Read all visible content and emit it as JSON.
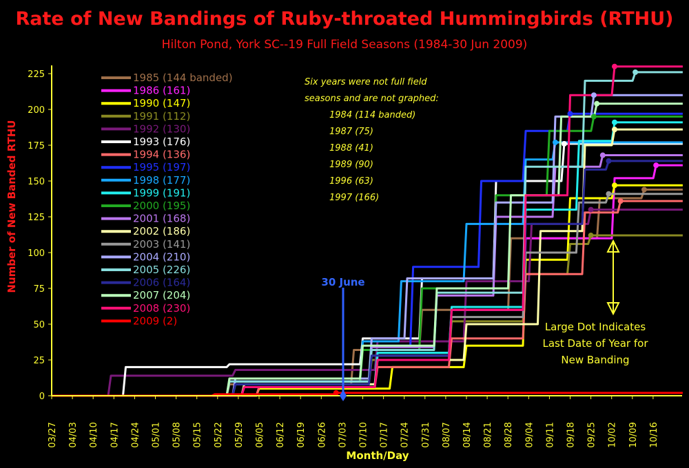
{
  "title": "Rate of New Bandings of Ruby-throated Hummingbirds (RTHU)",
  "subtitle": "Hilton Pond, York SC--19 Full Field Seasons (1984-30 Jun 2009)",
  "chart_data": {
    "type": "line",
    "xlabel": "Month/Day",
    "ylabel": "Number of New Banded RTHU",
    "x_ticks": [
      "03/27",
      "04/03",
      "04/10",
      "04/17",
      "04/24",
      "05/01",
      "05/08",
      "05/15",
      "05/22",
      "05/29",
      "06/05",
      "06/12",
      "06/19",
      "06/26",
      "07/03",
      "07/10",
      "07/17",
      "07/24",
      "07/31",
      "08/07",
      "08/14",
      "08/21",
      "08/28",
      "09/04",
      "09/11",
      "09/18",
      "09/25",
      "10/02",
      "10/09",
      "10/16"
    ],
    "ylim": [
      0,
      225
    ],
    "y_ticks": [
      0,
      25,
      50,
      75,
      100,
      125,
      150,
      175,
      200,
      225
    ],
    "series": [
      {
        "year": "1985",
        "count": "(144 banded)",
        "color": "#a0704a",
        "final": 144,
        "days": [
          0,
          60,
          102,
          125,
          155,
          185,
          200
        ],
        "vals": [
          0,
          8,
          32,
          60,
          110,
          138,
          144
        ]
      },
      {
        "year": "1986",
        "count": "(161)",
        "color": "#ff22ff",
        "final": 161,
        "days": [
          0,
          65,
          110,
          135,
          160,
          190,
          204
        ],
        "vals": [
          0,
          6,
          28,
          60,
          110,
          152,
          161
        ]
      },
      {
        "year": "1990",
        "count": "(147)",
        "color": "#ffff00",
        "final": 147,
        "days": [
          0,
          70,
          115,
          140,
          160,
          175,
          190
        ],
        "vals": [
          0,
          5,
          20,
          35,
          95,
          138,
          147
        ]
      },
      {
        "year": "1991",
        "count": "(112)",
        "color": "#8a8a22",
        "final": 112,
        "days": [
          0,
          62,
          108,
          135,
          160,
          175,
          182
        ],
        "vals": [
          0,
          8,
          25,
          52,
          85,
          106,
          112
        ]
      },
      {
        "year": "1992",
        "count": "(130)",
        "color": "#7a1a7a",
        "final": 130,
        "days": [
          0,
          20,
          62,
          110,
          140,
          162,
          182
        ],
        "vals": [
          0,
          14,
          18,
          38,
          80,
          120,
          130
        ]
      },
      {
        "year": "1993",
        "count": "(176)",
        "color": "#ffffff",
        "final": 176,
        "days": [
          0,
          25,
          60,
          105,
          125,
          150,
          173
        ],
        "vals": [
          0,
          20,
          22,
          40,
          82,
          150,
          176
        ]
      },
      {
        "year": "1994",
        "count": "(136)",
        "color": "#ff6a6a",
        "final": 136,
        "days": [
          0,
          70,
          110,
          135,
          160,
          180,
          192
        ],
        "vals": [
          0,
          6,
          20,
          40,
          85,
          128,
          136
        ]
      },
      {
        "year": "1995",
        "count": "(197)",
        "color": "#2030ff",
        "final": 197,
        "days": [
          0,
          62,
          108,
          122,
          145,
          160,
          175
        ],
        "vals": [
          0,
          10,
          35,
          90,
          150,
          185,
          197
        ]
      },
      {
        "year": "1998",
        "count": "(177)",
        "color": "#18a8ff",
        "final": 177,
        "days": [
          0,
          60,
          105,
          118,
          140,
          160,
          170
        ],
        "vals": [
          0,
          10,
          38,
          80,
          120,
          165,
          177
        ]
      },
      {
        "year": "1999",
        "count": "(191)",
        "color": "#22eeee",
        "final": 191,
        "days": [
          0,
          62,
          110,
          135,
          160,
          178,
          190
        ],
        "vals": [
          0,
          8,
          30,
          62,
          130,
          178,
          191
        ]
      },
      {
        "year": "2000",
        "count": "(195)",
        "color": "#22aa22",
        "final": 195,
        "days": [
          0,
          60,
          105,
          125,
          150,
          168,
          183
        ],
        "vals": [
          0,
          10,
          32,
          75,
          140,
          185,
          195
        ]
      },
      {
        "year": "2001",
        "count": "(168)",
        "color": "#bb77ee",
        "final": 168,
        "days": [
          0,
          60,
          108,
          130,
          150,
          170,
          186
        ],
        "vals": [
          0,
          10,
          34,
          70,
          125,
          160,
          168
        ]
      },
      {
        "year": "2002",
        "count": "(186)",
        "color": "#ffffaa",
        "final": 186,
        "days": [
          0,
          65,
          110,
          140,
          165,
          180,
          190
        ],
        "vals": [
          0,
          8,
          25,
          50,
          115,
          175,
          186
        ]
      },
      {
        "year": "2003",
        "count": "(141)",
        "color": "#999999",
        "final": 141,
        "days": [
          0,
          60,
          108,
          135,
          160,
          178,
          188
        ],
        "vals": [
          0,
          12,
          28,
          55,
          100,
          135,
          141
        ]
      },
      {
        "year": "2004",
        "count": "(210)",
        "color": "#aaaaff",
        "final": 210,
        "days": [
          0,
          62,
          108,
          120,
          150,
          170,
          183
        ],
        "vals": [
          0,
          12,
          40,
          82,
          135,
          195,
          210
        ]
      },
      {
        "year": "2005",
        "count": "(226)",
        "color": "#88dddd",
        "final": 226,
        "days": [
          0,
          60,
          108,
          130,
          160,
          180,
          197
        ],
        "vals": [
          0,
          10,
          32,
          72,
          160,
          220,
          226
        ]
      },
      {
        "year": "2006",
        "count": "(164)",
        "color": "#2a2a99",
        "final": 164,
        "days": [
          0,
          62,
          108,
          135,
          160,
          180,
          188
        ],
        "vals": [
          0,
          8,
          28,
          60,
          120,
          158,
          164
        ]
      },
      {
        "year": "2007",
        "count": "(204)",
        "color": "#bbffbb",
        "final": 204,
        "days": [
          0,
          60,
          105,
          130,
          155,
          172,
          184
        ],
        "vals": [
          0,
          12,
          35,
          75,
          140,
          195,
          204
        ]
      },
      {
        "year": "2008",
        "count": "(230)",
        "color": "#ff1177",
        "final": 230,
        "days": [
          0,
          65,
          110,
          135,
          160,
          175,
          190
        ],
        "vals": [
          0,
          6,
          25,
          60,
          140,
          210,
          230
        ]
      },
      {
        "year": "2009",
        "count": "(2)",
        "color": "#ff0000",
        "final": 2,
        "days": [
          0,
          55,
          96
        ],
        "vals": [
          0,
          1,
          2
        ]
      }
    ],
    "marker_date": "30 June",
    "note_heading_1": "Six years were not full field",
    "note_heading_2": "seasons and are not graphed:",
    "not_graphed": [
      "1984 (114 banded)",
      "1987 (75)",
      "1988 (41)",
      "1989 (90)",
      "1996 (63)",
      "1997 (166)"
    ],
    "annotation_1": "Large Dot Indicates",
    "annotation_2": "Last Date of Year for",
    "annotation_3": "New Banding"
  }
}
